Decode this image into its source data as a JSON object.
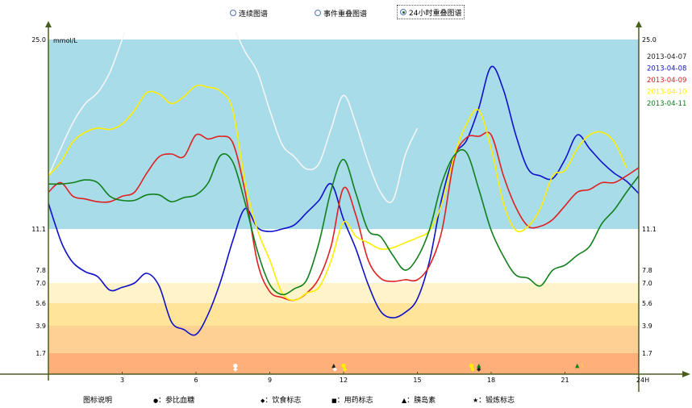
{
  "tabs": [
    {
      "label": "连续图谱",
      "selected": false
    },
    {
      "label": "事件重叠图谱",
      "selected": false
    },
    {
      "label": "24小时重叠图谱",
      "selected": true
    }
  ],
  "chart_data": {
    "type": "line",
    "title": "",
    "xlabel": "",
    "ylabel": "mmol/L",
    "xlim": [
      0,
      24
    ],
    "ylim": [
      0,
      25.0
    ],
    "x_ticks": [
      "3",
      "6",
      "9",
      "12",
      "15",
      "18",
      "21",
      "24H"
    ],
    "y_ticks_left": [
      "25.0",
      "11.1",
      "7.8",
      "7.0",
      "5.6",
      "3.9",
      "1.7"
    ],
    "y_ticks_right": [
      "25.0",
      "11.1",
      "7.8",
      "7.0",
      "5.6",
      "3.9",
      "1.7"
    ],
    "bands": [
      {
        "from": 11.1,
        "to": 25.0,
        "color": "#a8dce9"
      },
      {
        "from": 7.8,
        "to": 11.1,
        "color": "#ffffff"
      },
      {
        "from": 7.0,
        "to": 7.8,
        "color": "#ffffff"
      },
      {
        "from": 5.6,
        "to": 7.0,
        "color": "#fff3c9"
      },
      {
        "from": 3.9,
        "to": 5.6,
        "color": "#ffe49a"
      },
      {
        "from": 1.7,
        "to": 3.9,
        "color": "#ffd093"
      },
      {
        "from": 0,
        "to": 1.7,
        "color": "#ffaf7a"
      }
    ],
    "series": [
      {
        "name": "2013-04-07",
        "color": "#f5f5f5",
        "x": [
          0,
          0.5,
          1,
          1.5,
          2,
          2.5,
          3,
          3.5,
          4,
          4.5,
          5,
          5.5,
          6,
          6.5,
          7,
          7.5,
          8,
          8.5,
          9,
          9.5,
          10,
          10.5,
          11,
          11.5,
          12,
          12.5,
          13,
          13.5,
          14,
          14.5,
          15
        ],
        "y": [
          15.0,
          17.0,
          18.9,
          20.3,
          21.1,
          22.6,
          25.0,
          27.5,
          28.4,
          28.2,
          28.3,
          27.0,
          27.6,
          28.5,
          27.8,
          26.0,
          24.1,
          22.6,
          19.8,
          17.3,
          16.4,
          15.5,
          15.9,
          18.5,
          20.9,
          18.8,
          16.0,
          13.8,
          13.2,
          16.5,
          18.5
        ]
      },
      {
        "name": "2013-04-08",
        "color": "#1010cc",
        "x": [
          0,
          0.3,
          0.6,
          1,
          1.5,
          2,
          2.5,
          3,
          3.5,
          4,
          4.5,
          5,
          5.5,
          6,
          6.5,
          7,
          7.5,
          8,
          8.5,
          9,
          9.5,
          10,
          10.5,
          11,
          11.5,
          12,
          12.5,
          13,
          13.5,
          14,
          14.5,
          15,
          15.5,
          16,
          16.5,
          17,
          17.5,
          18,
          18.5,
          19,
          19.5,
          20,
          20.5,
          21,
          21.5,
          22,
          22.5,
          23,
          23.5,
          24
        ],
        "y": [
          13.0,
          11.3,
          9.7,
          8.4,
          7.7,
          7.4,
          6.5,
          6.7,
          7.0,
          7.6,
          6.8,
          4.2,
          3.6,
          3.2,
          4.8,
          7.1,
          10.2,
          12.6,
          11.2,
          10.9,
          11.1,
          11.4,
          12.3,
          13.2,
          14.4,
          11.8,
          9.5,
          6.9,
          5.0,
          4.5,
          4.9,
          5.9,
          8.6,
          13.4,
          16.5,
          17.6,
          20.0,
          23.0,
          21.3,
          18.0,
          15.5,
          15.0,
          14.8,
          16.2,
          18.0,
          17.0,
          16.0,
          15.2,
          14.6,
          13.7
        ]
      },
      {
        "name": "2013-04-09",
        "color": "#e02020",
        "x": [
          0,
          0.5,
          1,
          1.5,
          2,
          2.5,
          3,
          3.5,
          4,
          4.5,
          5,
          5.5,
          6,
          6.5,
          7,
          7.5,
          8,
          8.5,
          9,
          9.5,
          10,
          10.5,
          11,
          11.5,
          12,
          12.5,
          13,
          13.5,
          14,
          14.5,
          15,
          15.5,
          16,
          16.5,
          17,
          17.5,
          18,
          18.5,
          19,
          19.5,
          20,
          20.5,
          21,
          21.5,
          22,
          22.5,
          23,
          23.5,
          24
        ],
        "y": [
          13.8,
          14.5,
          13.5,
          13.3,
          13.1,
          13.1,
          13.5,
          13.8,
          15.2,
          16.4,
          16.6,
          16.4,
          18.0,
          17.7,
          17.9,
          17.4,
          13.8,
          8.4,
          6.4,
          6.0,
          5.8,
          6.3,
          7.3,
          9.8,
          14.1,
          12.1,
          8.6,
          7.3,
          7.1,
          7.2,
          7.2,
          8.2,
          11.0,
          16.2,
          17.8,
          17.9,
          18.0,
          15.0,
          12.7,
          11.3,
          11.3,
          11.8,
          12.8,
          13.8,
          14.0,
          14.5,
          14.5,
          15.0,
          15.6
        ]
      },
      {
        "name": "2013-04-10",
        "color": "#ffee00",
        "x": [
          0,
          0.5,
          1,
          1.5,
          2,
          2.5,
          3,
          3.5,
          4,
          4.5,
          5,
          5.5,
          6,
          6.5,
          7,
          7.5,
          8,
          8.5,
          9,
          9.5,
          10,
          10.5,
          11,
          11.5,
          12,
          12.5,
          13,
          13.5,
          14,
          14.5,
          15,
          15.5,
          16,
          16.5,
          17,
          17.5,
          18,
          18.5,
          19,
          19.5,
          20,
          20.5,
          21,
          21.5,
          22,
          22.5,
          23,
          23.5
        ],
        "y": [
          15.0,
          16.0,
          17.5,
          18.2,
          18.5,
          18.4,
          18.8,
          19.8,
          21.1,
          21.0,
          20.3,
          20.8,
          21.6,
          21.5,
          21.2,
          19.8,
          14.5,
          11.0,
          8.6,
          6.3,
          5.8,
          6.3,
          6.7,
          8.6,
          11.6,
          10.5,
          10.0,
          9.5,
          9.6,
          10.0,
          10.4,
          11.0,
          13.0,
          16.5,
          18.8,
          19.8,
          17.0,
          13.0,
          11.0,
          11.3,
          12.6,
          15.0,
          15.4,
          17.0,
          18.0,
          18.2,
          17.5,
          15.6
        ]
      },
      {
        "name": "2013-04-11",
        "color": "#10801a",
        "x": [
          0,
          0.5,
          1,
          1.5,
          2,
          2.5,
          3,
          3.5,
          4,
          4.5,
          5,
          5.5,
          6,
          6.5,
          7,
          7.5,
          8,
          8.5,
          9,
          9.5,
          10,
          10.5,
          11,
          11.5,
          12,
          12.5,
          13,
          13.5,
          14,
          14.5,
          15,
          15.5,
          16,
          16.5,
          17,
          17.5,
          18,
          18.5,
          19,
          19.5,
          20,
          20.5,
          21,
          21.5,
          22,
          22.5,
          23,
          23.5,
          24
        ],
        "y": [
          14.4,
          14.4,
          14.5,
          14.7,
          14.5,
          13.5,
          13.2,
          13.2,
          13.6,
          13.6,
          13.1,
          13.4,
          13.6,
          14.5,
          16.5,
          16.0,
          13.0,
          9.3,
          6.9,
          6.2,
          6.6,
          7.2,
          10.0,
          14.0,
          16.2,
          13.7,
          11.0,
          10.5,
          9.0,
          7.8,
          8.8,
          11.1,
          14.5,
          16.5,
          16.7,
          14.0,
          11.0,
          8.9,
          7.5,
          7.3,
          6.8,
          7.8,
          8.2,
          9.0,
          9.7,
          11.5,
          12.5,
          13.8,
          15.0
        ]
      }
    ],
    "markers": [
      {
        "x": 7.6,
        "y": 0.75,
        "symbol": "●",
        "color": "#ffffff"
      },
      {
        "x": 7.6,
        "y": 0.45,
        "symbol": "◆",
        "color": "#ffffff"
      },
      {
        "x": 11.6,
        "y": 0.75,
        "symbol": "▲",
        "color": "#222222"
      },
      {
        "x": 11.65,
        "y": 0.45,
        "symbol": "◆",
        "color": "#ffffff"
      },
      {
        "x": 12.0,
        "y": 0.75,
        "symbol": "●",
        "color": "#ffee00"
      },
      {
        "x": 12.05,
        "y": 0.45,
        "symbol": "◆",
        "color": "#ffee00"
      },
      {
        "x": 17.2,
        "y": 0.75,
        "symbol": "●",
        "color": "#ffee00"
      },
      {
        "x": 17.25,
        "y": 0.45,
        "symbol": "◆",
        "color": "#ffee00"
      },
      {
        "x": 17.5,
        "y": 0.75,
        "symbol": "▲",
        "color": "#10801a"
      },
      {
        "x": 17.5,
        "y": 0.45,
        "symbol": "◆",
        "color": "#222222"
      },
      {
        "x": 21.5,
        "y": 0.75,
        "symbol": "▲",
        "color": "#10801a"
      },
      {
        "x": 21.7,
        "y": 0.75,
        "symbol": "\\",
        "color": "#ffee00"
      }
    ],
    "legend_position": "right"
  },
  "icon_legend": {
    "title": "图标说明",
    "items": [
      {
        "symbol": "●",
        "label": "：参比血糖"
      },
      {
        "symbol": "◆",
        "label": "：饮食标志"
      },
      {
        "symbol": "■",
        "label": "：用药标志"
      },
      {
        "symbol": "▲",
        "label": "：胰岛素"
      },
      {
        "symbol": "★",
        "label": "：锻炼标志"
      }
    ]
  }
}
